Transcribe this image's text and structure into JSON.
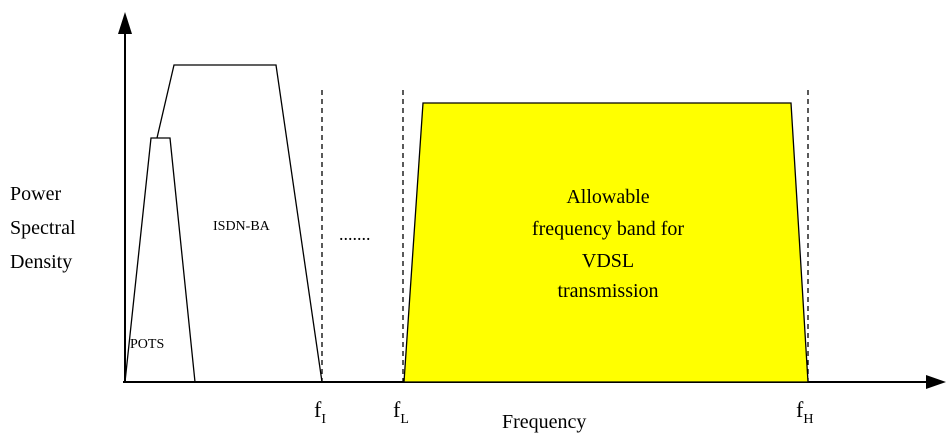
{
  "axes": {
    "y_label_lines": [
      "Power",
      "Spectral",
      "Density"
    ],
    "x_label": "Frequency"
  },
  "bands": {
    "pots": "POTS",
    "isdn": "ISDN-BA",
    "vdsl_lines": [
      "Allowable",
      "frequency band for",
      "VDSL",
      "transmission"
    ],
    "vdsl_fill": "#FFFF00"
  },
  "markers": {
    "f_i": {
      "base": "f",
      "sub": "I"
    },
    "f_l": {
      "base": "f",
      "sub": "L"
    },
    "f_h": {
      "base": "f",
      "sub": "H"
    }
  },
  "gap_indicator": "......."
}
